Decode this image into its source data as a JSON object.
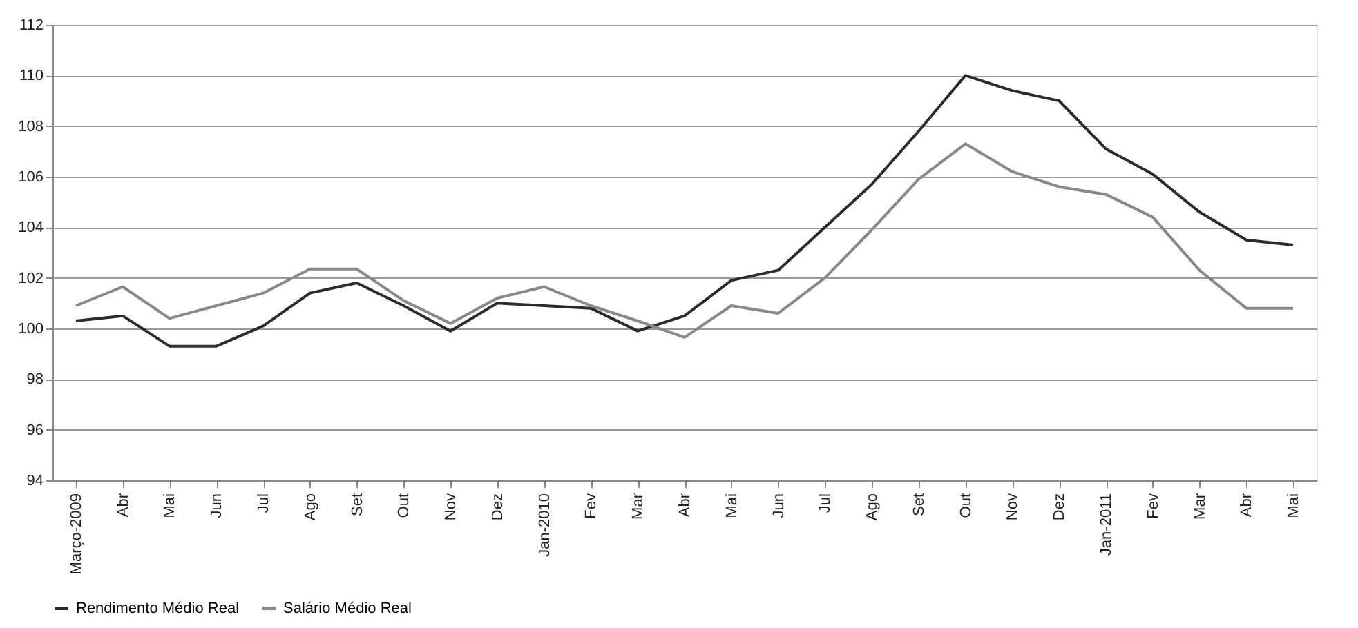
{
  "chart_data": {
    "type": "line",
    "categories": [
      "Março-2009",
      "Abr",
      "Mai",
      "Jun",
      "Jul",
      "Ago",
      "Set",
      "Out",
      "Nov",
      "Dez",
      "Jan-2010",
      "Fev",
      "Mar",
      "Abr",
      "Mai",
      "Jun",
      "Jul",
      "Ago",
      "Set",
      "Out",
      "Nov",
      "Dez",
      "Jan-2011",
      "Fev",
      "Mar",
      "Abr",
      "Mai"
    ],
    "series": [
      {
        "name": "Rendimento Médio Real",
        "color": "#2b2b2b",
        "values": [
          100.3,
          100.5,
          99.3,
          99.3,
          100.1,
          101.4,
          101.8,
          100.9,
          99.9,
          101.0,
          100.9,
          100.8,
          99.9,
          100.5,
          101.9,
          102.3,
          104.0,
          105.7,
          107.8,
          110.0,
          109.4,
          109.0,
          107.1,
          106.1,
          104.6,
          103.5,
          103.3
        ]
      },
      {
        "name": "Salário Médio Real",
        "color": "#888888",
        "values": [
          100.9,
          101.65,
          100.4,
          100.9,
          101.4,
          102.35,
          102.35,
          101.1,
          100.2,
          101.2,
          101.65,
          100.9,
          100.3,
          99.65,
          100.9,
          100.6,
          102.0,
          103.9,
          105.9,
          107.3,
          106.2,
          105.6,
          105.3,
          104.4,
          102.3,
          100.8,
          100.8
        ]
      }
    ],
    "ylim": [
      94,
      112
    ],
    "yticks": [
      94,
      96,
      98,
      100,
      102,
      104,
      106,
      108,
      110,
      112
    ],
    "grid": "y",
    "legend": "bottom",
    "line_style": "solid",
    "marker": "none"
  }
}
